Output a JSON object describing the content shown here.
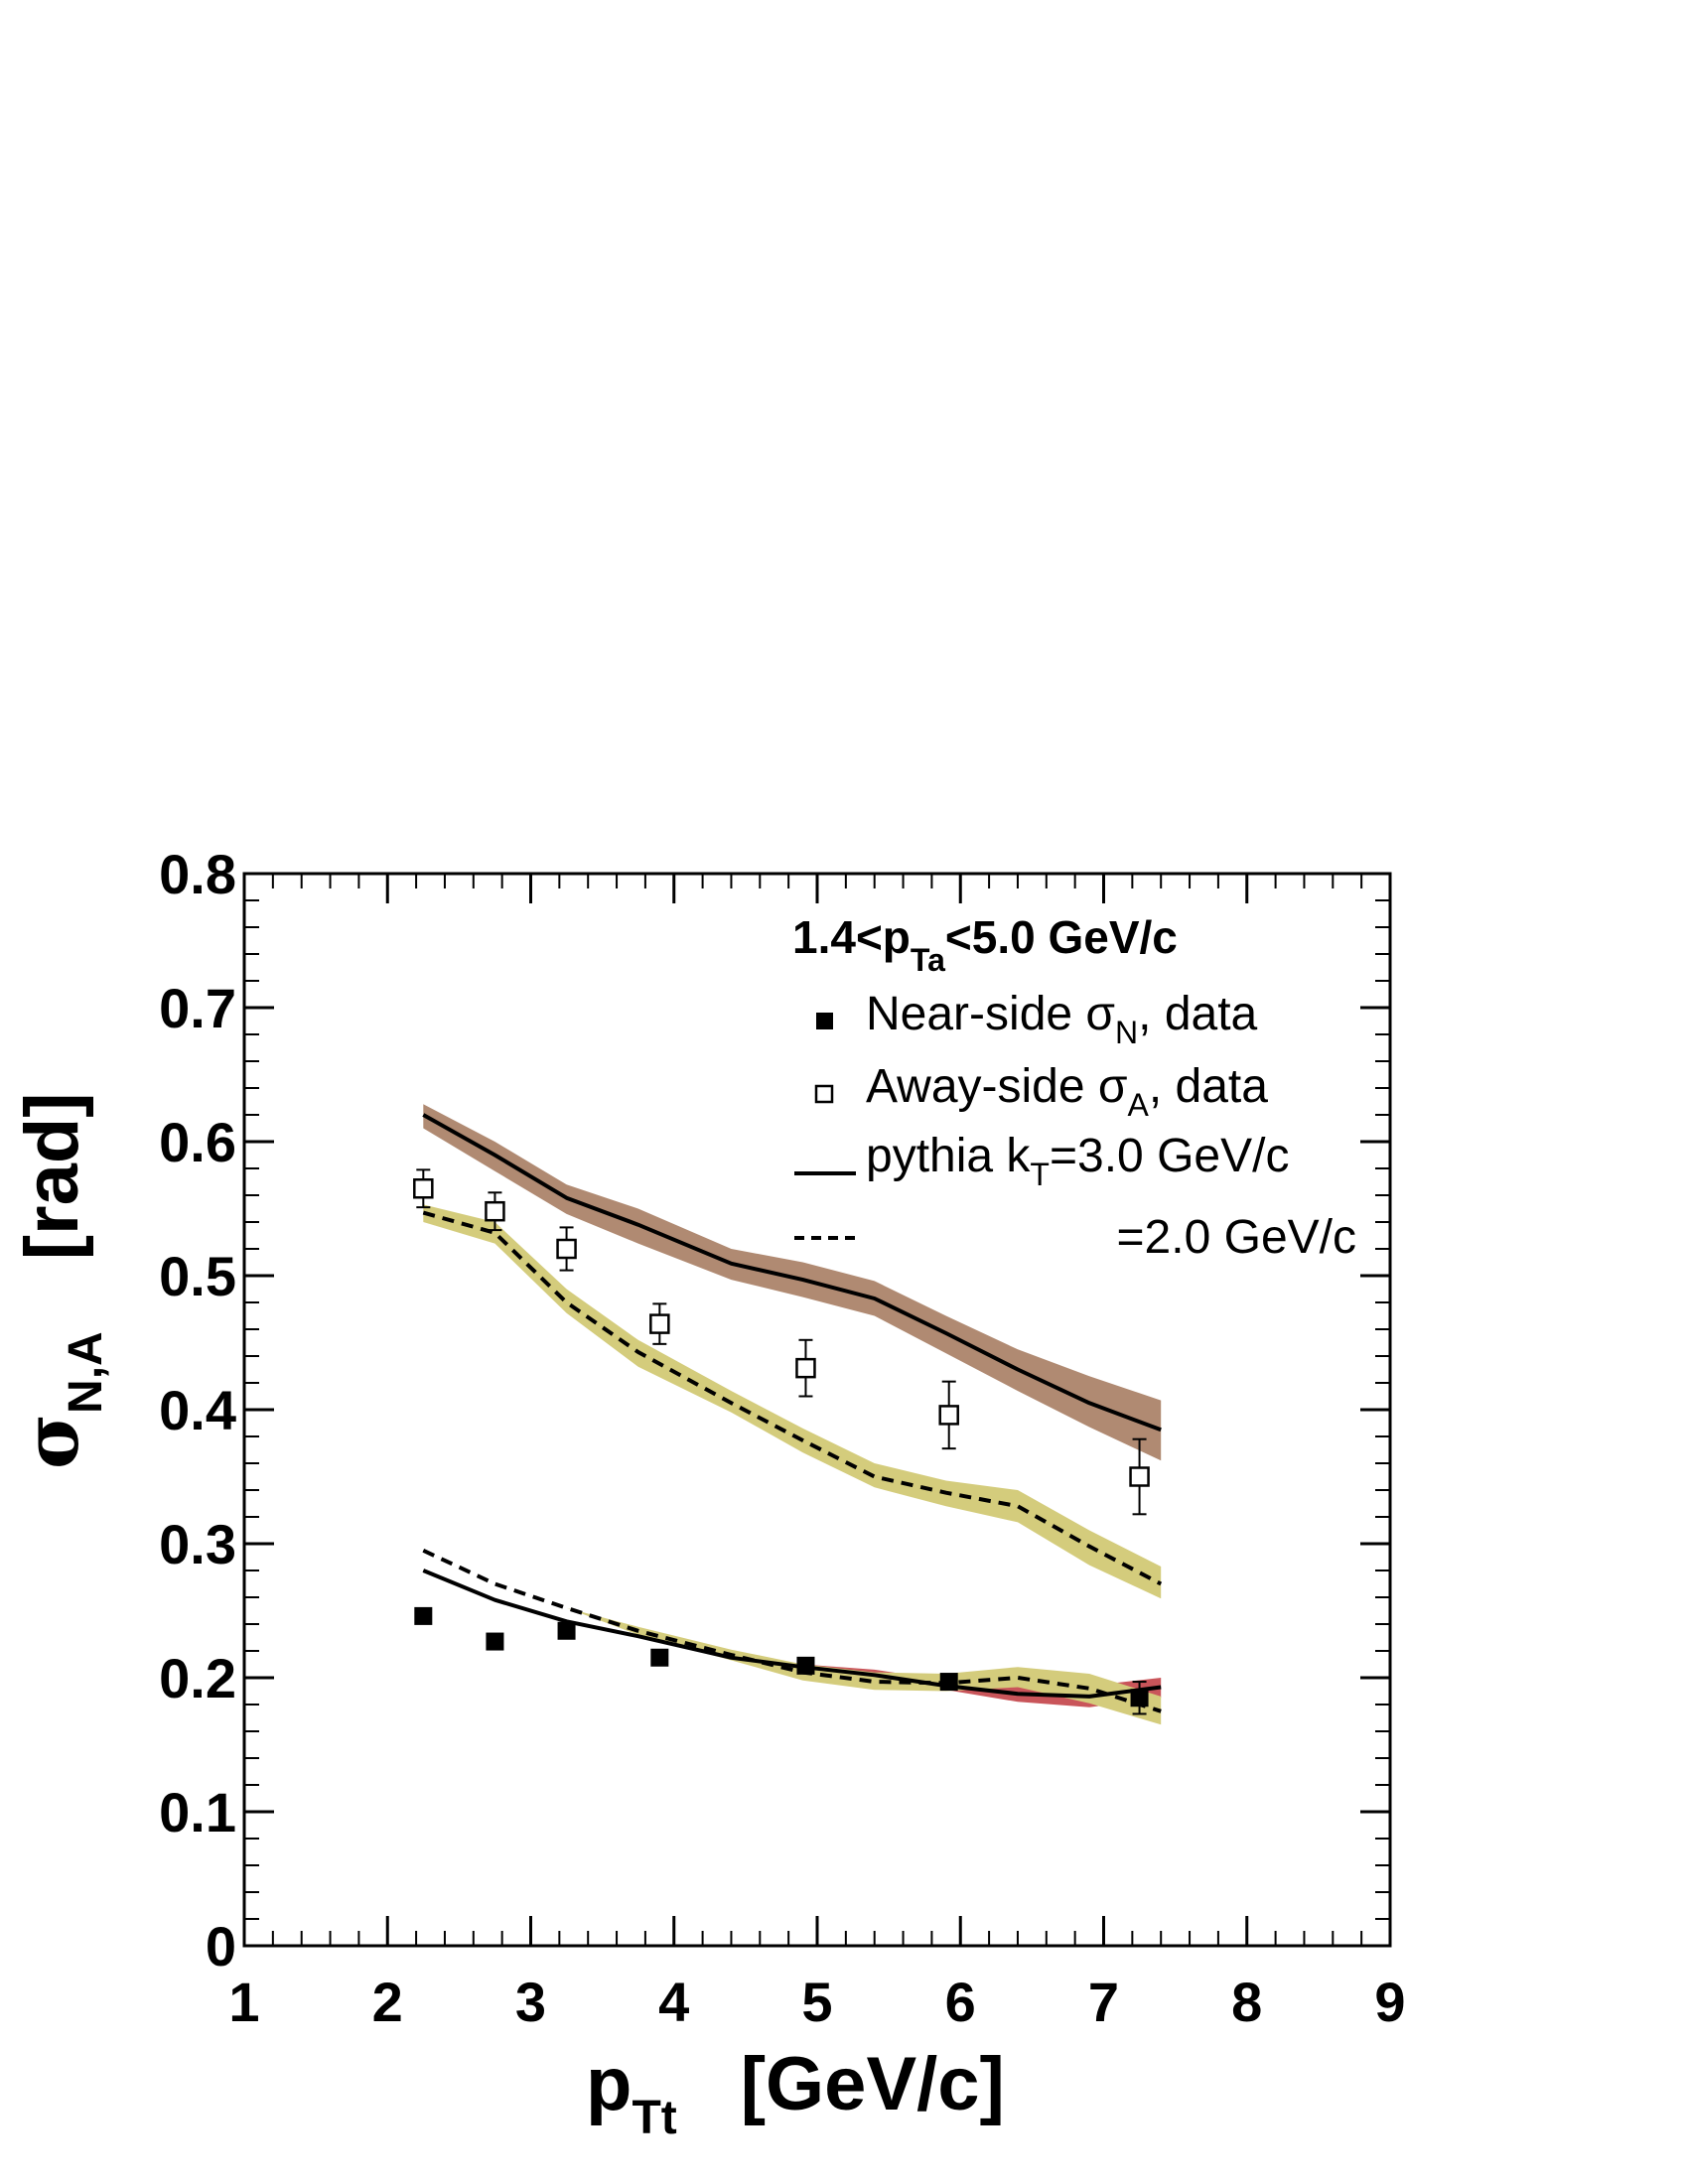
{
  "chart_data": {
    "type": "line",
    "xlim": [
      1,
      9
    ],
    "ylim": [
      0,
      0.8
    ],
    "x_ticks": [
      "1",
      "2",
      "3",
      "4",
      "5",
      "6",
      "7",
      "8",
      "9"
    ],
    "y_ticks": [
      "0",
      "0.1",
      "0.2",
      "0.3",
      "0.4",
      "0.5",
      "0.6",
      "0.7",
      "0.8"
    ],
    "xlabel": {
      "main": "p",
      "sub": "Tt",
      "unit": "[GeV/c]"
    },
    "ylabel": {
      "main": "σ",
      "sub": "N,A",
      "unit": "[rad]"
    },
    "legend": {
      "header": {
        "pre": "1.4<p",
        "sub": "Ta",
        "post": "<5.0 GeV/c"
      },
      "entries": [
        {
          "pre": "Near-side  σ",
          "sub": "N",
          "post": ", data",
          "marker": "filled-square"
        },
        {
          "pre": "Away-side σ",
          "sub": "A",
          "post": ", data",
          "marker": "open-square"
        },
        {
          "pre": "pythia k",
          "sub": "T",
          "post": "=3.0 GeV/c",
          "marker": "solid-line"
        },
        {
          "pre": "",
          "sub": "",
          "post": "=2.0 GeV/c",
          "marker": "dashed-line"
        }
      ],
      "placement": "top-right"
    },
    "series": [
      {
        "marker": "filled-square",
        "points": [
          {
            "x": 2.25,
            "y": 0.246
          },
          {
            "x": 2.75,
            "y": 0.227
          },
          {
            "x": 3.25,
            "y": 0.235
          },
          {
            "x": 3.9,
            "y": 0.215
          },
          {
            "x": 4.92,
            "y": 0.209
          },
          {
            "x": 5.92,
            "y": 0.197
          },
          {
            "x": 7.25,
            "y": 0.185,
            "err": 0.012
          }
        ]
      },
      {
        "marker": "open-square",
        "points": [
          {
            "x": 2.25,
            "y": 0.565,
            "err": 0.014
          },
          {
            "x": 2.75,
            "y": 0.548,
            "err": 0.014
          },
          {
            "x": 3.25,
            "y": 0.52,
            "err": 0.016
          },
          {
            "x": 3.9,
            "y": 0.464,
            "err": 0.015
          },
          {
            "x": 4.92,
            "y": 0.431,
            "err": 0.021
          },
          {
            "x": 5.92,
            "y": 0.396,
            "err": 0.025
          },
          {
            "x": 7.25,
            "y": 0.35,
            "err": 0.028
          }
        ]
      },
      {
        "style": "solid",
        "band_color": "#b08a72",
        "points": [
          [
            2.25,
            0.62
          ],
          [
            2.75,
            0.59
          ],
          [
            3.25,
            0.558
          ],
          [
            3.75,
            0.538
          ],
          [
            4.4,
            0.509
          ],
          [
            4.9,
            0.497
          ],
          [
            5.4,
            0.483
          ],
          [
            5.9,
            0.457
          ],
          [
            6.4,
            0.43
          ],
          [
            6.9,
            0.405
          ],
          [
            7.4,
            0.385
          ]
        ],
        "band_lower": [
          [
            2.25,
            0.61
          ],
          [
            2.75,
            0.578
          ],
          [
            3.25,
            0.546
          ],
          [
            3.75,
            0.524
          ],
          [
            4.4,
            0.497
          ],
          [
            4.9,
            0.484
          ],
          [
            5.4,
            0.47
          ],
          [
            5.9,
            0.442
          ],
          [
            6.4,
            0.414
          ],
          [
            6.9,
            0.387
          ],
          [
            7.4,
            0.362
          ]
        ],
        "band_upper": [
          [
            2.25,
            0.628
          ],
          [
            2.75,
            0.6
          ],
          [
            3.25,
            0.568
          ],
          [
            3.75,
            0.55
          ],
          [
            4.4,
            0.52
          ],
          [
            4.9,
            0.51
          ],
          [
            5.4,
            0.496
          ],
          [
            5.9,
            0.47
          ],
          [
            6.4,
            0.445
          ],
          [
            6.9,
            0.425
          ],
          [
            7.4,
            0.407
          ]
        ]
      },
      {
        "style": "dashed",
        "band_color": "#d4cc7c",
        "points": [
          [
            2.25,
            0.547
          ],
          [
            2.75,
            0.532
          ],
          [
            3.25,
            0.48
          ],
          [
            3.75,
            0.443
          ],
          [
            4.4,
            0.405
          ],
          [
            4.9,
            0.377
          ],
          [
            5.4,
            0.35
          ],
          [
            5.9,
            0.338
          ],
          [
            6.4,
            0.328
          ],
          [
            6.9,
            0.298
          ],
          [
            7.4,
            0.27
          ]
        ],
        "band_lower": [
          [
            2.25,
            0.54
          ],
          [
            2.75,
            0.524
          ],
          [
            3.25,
            0.472
          ],
          [
            3.75,
            0.432
          ],
          [
            4.4,
            0.398
          ],
          [
            4.9,
            0.368
          ],
          [
            5.4,
            0.342
          ],
          [
            5.9,
            0.328
          ],
          [
            6.4,
            0.316
          ],
          [
            6.9,
            0.284
          ],
          [
            7.4,
            0.259
          ]
        ],
        "band_upper": [
          [
            2.25,
            0.553
          ],
          [
            2.75,
            0.54
          ],
          [
            3.25,
            0.49
          ],
          [
            3.75,
            0.452
          ],
          [
            4.4,
            0.414
          ],
          [
            4.9,
            0.386
          ],
          [
            5.4,
            0.36
          ],
          [
            5.9,
            0.347
          ],
          [
            6.4,
            0.34
          ],
          [
            6.9,
            0.31
          ],
          [
            7.4,
            0.283
          ]
        ]
      },
      {
        "style": "solid",
        "band_color": "#c9555a",
        "points": [
          [
            2.25,
            0.28
          ],
          [
            2.75,
            0.258
          ],
          [
            3.25,
            0.242
          ],
          [
            3.75,
            0.231
          ],
          [
            4.4,
            0.215
          ],
          [
            4.9,
            0.208
          ],
          [
            5.4,
            0.202
          ],
          [
            5.9,
            0.194
          ],
          [
            6.4,
            0.188
          ],
          [
            6.9,
            0.186
          ],
          [
            7.4,
            0.193
          ]
        ],
        "band_lower": [
          [
            2.25,
            0.28
          ],
          [
            2.75,
            0.258
          ],
          [
            3.25,
            0.242
          ],
          [
            3.75,
            0.231
          ],
          [
            4.4,
            0.214
          ],
          [
            4.9,
            0.206
          ],
          [
            5.4,
            0.199
          ],
          [
            5.9,
            0.191
          ],
          [
            6.4,
            0.182
          ],
          [
            6.9,
            0.178
          ],
          [
            7.4,
            0.185
          ]
        ],
        "band_upper": [
          [
            2.25,
            0.28
          ],
          [
            2.75,
            0.258
          ],
          [
            3.25,
            0.242
          ],
          [
            3.75,
            0.231
          ],
          [
            4.4,
            0.216
          ],
          [
            4.9,
            0.21
          ],
          [
            5.4,
            0.206
          ],
          [
            5.9,
            0.198
          ],
          [
            6.4,
            0.194
          ],
          [
            6.9,
            0.194
          ],
          [
            7.4,
            0.2
          ]
        ]
      },
      {
        "style": "dashed",
        "band_color": "#d4cc7c",
        "points": [
          [
            2.25,
            0.295
          ],
          [
            2.75,
            0.27
          ],
          [
            3.25,
            0.252
          ],
          [
            3.75,
            0.235
          ],
          [
            4.4,
            0.217
          ],
          [
            4.9,
            0.204
          ],
          [
            5.4,
            0.197
          ],
          [
            5.9,
            0.196
          ],
          [
            6.4,
            0.2
          ],
          [
            6.9,
            0.192
          ],
          [
            7.4,
            0.175
          ]
        ],
        "band_lower": [
          [
            2.25,
            0.295
          ],
          [
            2.75,
            0.27
          ],
          [
            3.25,
            0.252
          ],
          [
            3.75,
            0.232
          ],
          [
            4.4,
            0.213
          ],
          [
            4.9,
            0.198
          ],
          [
            5.4,
            0.191
          ],
          [
            5.9,
            0.19
          ],
          [
            6.4,
            0.193
          ],
          [
            6.9,
            0.181
          ],
          [
            7.4,
            0.165
          ]
        ],
        "band_upper": [
          [
            2.25,
            0.295
          ],
          [
            2.75,
            0.27
          ],
          [
            3.25,
            0.252
          ],
          [
            3.75,
            0.238
          ],
          [
            4.4,
            0.221
          ],
          [
            4.9,
            0.21
          ],
          [
            5.4,
            0.204
          ],
          [
            5.9,
            0.203
          ],
          [
            6.4,
            0.208
          ],
          [
            6.9,
            0.203
          ],
          [
            7.4,
            0.186
          ]
        ]
      }
    ]
  }
}
